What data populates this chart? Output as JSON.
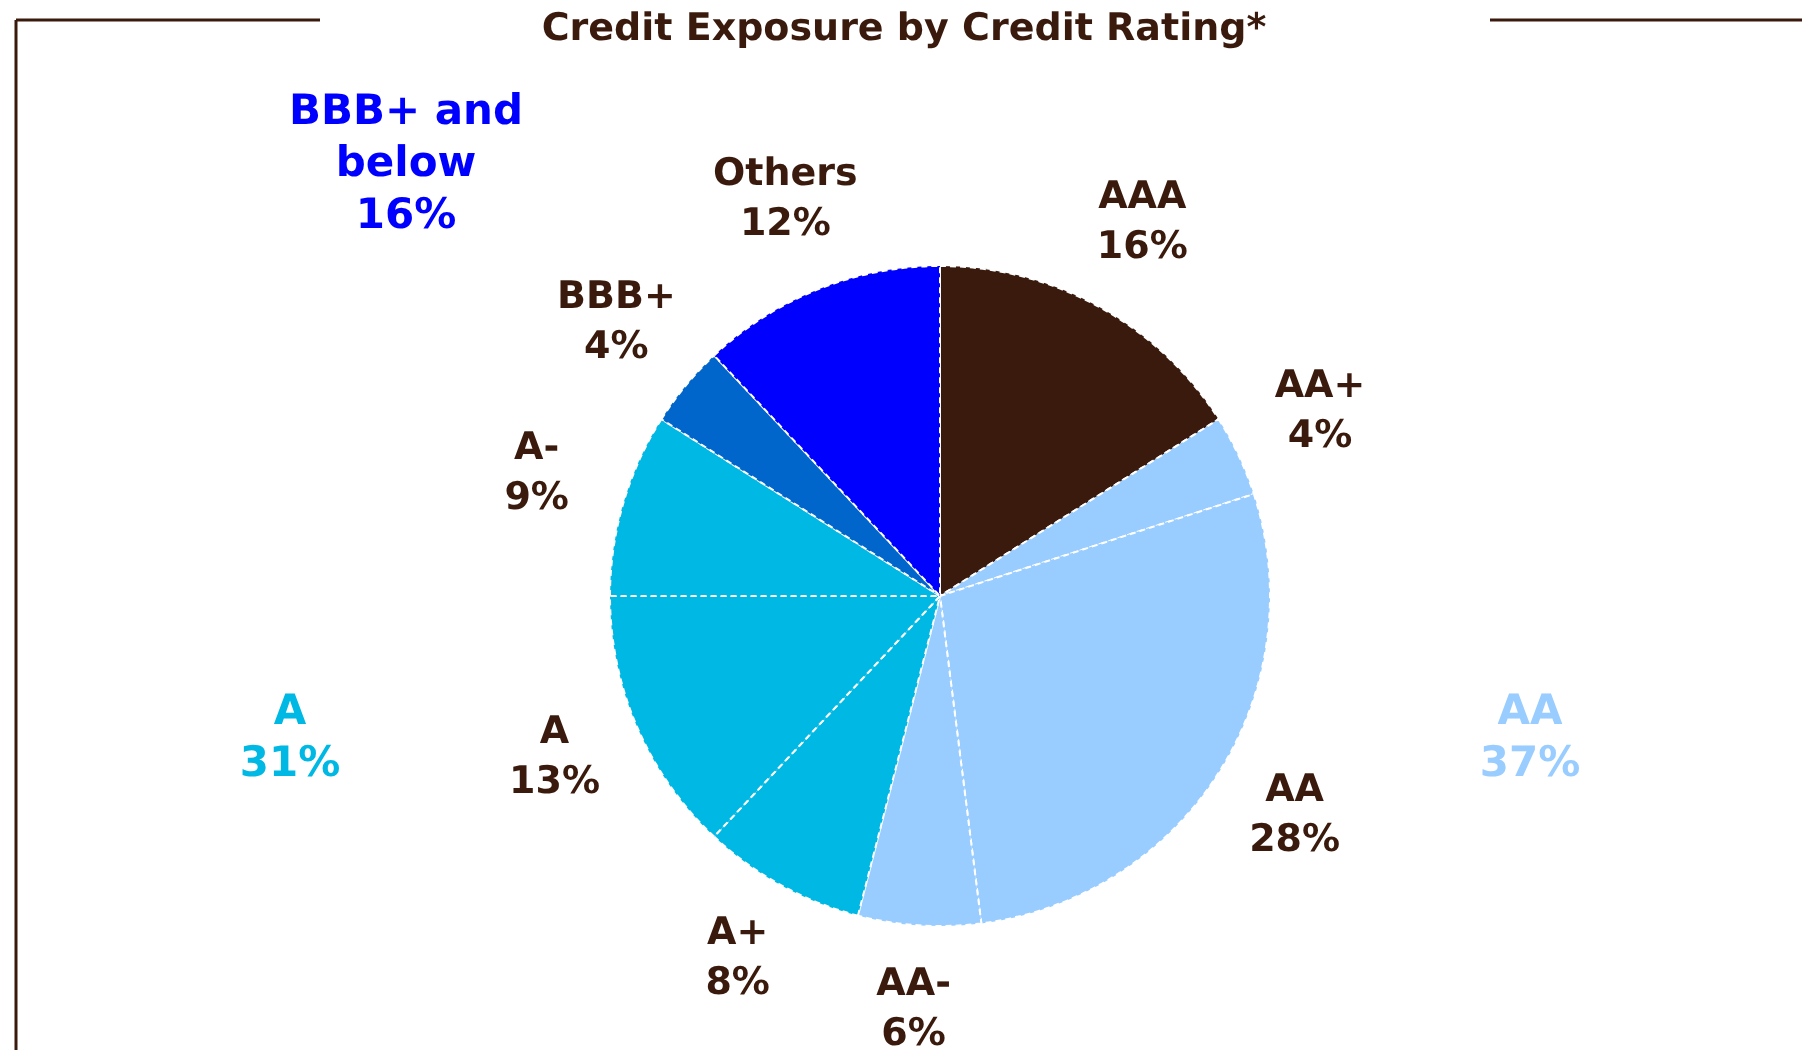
{
  "chart_data": {
    "type": "pie",
    "title": "Credit Exposure by Credit Rating*",
    "categories": [
      "AAA",
      "AA+",
      "AA",
      "AA-",
      "A+",
      "A",
      "A-",
      "BBB+",
      "Others"
    ],
    "values": [
      16,
      4,
      28,
      6,
      8,
      13,
      9,
      4,
      12
    ],
    "value_labels": [
      "16%",
      "4%",
      "28%",
      "6%",
      "8%",
      "13%",
      "9%",
      "4%",
      "12%"
    ],
    "colors": [
      "#3a1a0c",
      "#99ccff",
      "#99ccff",
      "#99ccff",
      "#00b8e4",
      "#00b8e4",
      "#00b8e4",
      "#0066cc",
      "#0000ff"
    ],
    "annotations": [
      "BBB+ and below 16%",
      "A 31%",
      "AA 37%"
    ]
  }
}
